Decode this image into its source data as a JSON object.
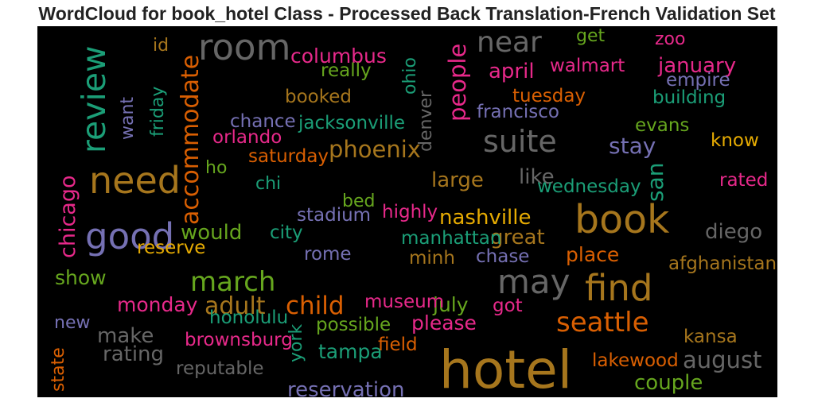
{
  "chart_data": {
    "type": "wordcloud",
    "title": "WordCloud for book_hotel Class - Processed Back Translation-French Validation Set",
    "background": "#000000",
    "words": [
      {
        "text": "hotel",
        "weight": 1.0,
        "color": "#a6761d",
        "vertical": false
      },
      {
        "text": "book",
        "weight": 0.7,
        "color": "#a6761d",
        "vertical": false
      },
      {
        "text": "room",
        "weight": 0.62,
        "color": "#666666",
        "vertical": false
      },
      {
        "text": "need",
        "weight": 0.65,
        "color": "#a6761d",
        "vertical": false
      },
      {
        "text": "good",
        "weight": 0.62,
        "color": "#7570b3",
        "vertical": false
      },
      {
        "text": "find",
        "weight": 0.62,
        "color": "#a6761d",
        "vertical": false
      },
      {
        "text": "may",
        "weight": 0.58,
        "color": "#666666",
        "vertical": false
      },
      {
        "text": "review",
        "weight": 0.55,
        "color": "#1b9e77",
        "vertical": true
      },
      {
        "text": "suite",
        "weight": 0.5,
        "color": "#666666",
        "vertical": false
      },
      {
        "text": "near",
        "weight": 0.46,
        "color": "#666666",
        "vertical": false
      },
      {
        "text": "seattle",
        "weight": 0.42,
        "color": "#d95f02",
        "vertical": false
      },
      {
        "text": "march",
        "weight": 0.42,
        "color": "#66a61e",
        "vertical": false
      },
      {
        "text": "child",
        "weight": 0.38,
        "color": "#d95f02",
        "vertical": false
      },
      {
        "text": "adult",
        "weight": 0.36,
        "color": "#a6761d",
        "vertical": false
      },
      {
        "text": "accommodate",
        "weight": 0.35,
        "color": "#d95f02",
        "vertical": true
      },
      {
        "text": "phoenix",
        "weight": 0.34,
        "color": "#a6761d",
        "vertical": false
      },
      {
        "text": "people",
        "weight": 0.34,
        "color": "#e7298a",
        "vertical": true
      },
      {
        "text": "august",
        "weight": 0.34,
        "color": "#666666",
        "vertical": false
      },
      {
        "text": "stay",
        "weight": 0.33,
        "color": "#7570b3",
        "vertical": false
      },
      {
        "text": "san",
        "weight": 0.32,
        "color": "#1b9e77",
        "vertical": true
      },
      {
        "text": "chicago",
        "weight": 0.3,
        "color": "#e7298a",
        "vertical": true
      },
      {
        "text": "reservation",
        "weight": 0.29,
        "color": "#7570b3",
        "vertical": false
      },
      {
        "text": "couple",
        "weight": 0.29,
        "color": "#66a61e",
        "vertical": false
      },
      {
        "text": "nashville",
        "weight": 0.29,
        "color": "#e6ab02",
        "vertical": false
      },
      {
        "text": "large",
        "weight": 0.29,
        "color": "#a6761d",
        "vertical": false
      },
      {
        "text": "like",
        "weight": 0.28,
        "color": "#666666",
        "vertical": false
      },
      {
        "text": "rating",
        "weight": 0.28,
        "color": "#666666",
        "vertical": false
      },
      {
        "text": "make",
        "weight": 0.28,
        "color": "#666666",
        "vertical": false
      },
      {
        "text": "would",
        "weight": 0.28,
        "color": "#66a61e",
        "vertical": false
      },
      {
        "text": "great",
        "weight": 0.28,
        "color": "#a6761d",
        "vertical": false
      },
      {
        "text": "diego",
        "weight": 0.28,
        "color": "#666666",
        "vertical": false
      },
      {
        "text": "january",
        "weight": 0.28,
        "color": "#e7298a",
        "vertical": false
      },
      {
        "text": "april",
        "weight": 0.28,
        "color": "#e7298a",
        "vertical": false
      },
      {
        "text": "columbus",
        "weight": 0.27,
        "color": "#e7298a",
        "vertical": false
      },
      {
        "text": "place",
        "weight": 0.27,
        "color": "#d95f02",
        "vertical": false
      },
      {
        "text": "tampa",
        "weight": 0.27,
        "color": "#1b9e77",
        "vertical": false
      },
      {
        "text": "please",
        "weight": 0.27,
        "color": "#e7298a",
        "vertical": false
      },
      {
        "text": "july",
        "weight": 0.27,
        "color": "#66a61e",
        "vertical": false
      },
      {
        "text": "monday",
        "weight": 0.27,
        "color": "#e7298a",
        "vertical": false
      },
      {
        "text": "show",
        "weight": 0.27,
        "color": "#66a61e",
        "vertical": false
      },
      {
        "text": "afghanistan",
        "weight": 0.24,
        "color": "#a6761d",
        "vertical": false
      },
      {
        "text": "walmart",
        "weight": 0.24,
        "color": "#e7298a",
        "vertical": false
      },
      {
        "text": "tuesday",
        "weight": 0.24,
        "color": "#d95f02",
        "vertical": false
      },
      {
        "text": "francisco",
        "weight": 0.24,
        "color": "#7570b3",
        "vertical": false
      },
      {
        "text": "building",
        "weight": 0.24,
        "color": "#1b9e77",
        "vertical": false
      },
      {
        "text": "empire",
        "weight": 0.24,
        "color": "#7570b3",
        "vertical": false
      },
      {
        "text": "jacksonville",
        "weight": 0.24,
        "color": "#1b9e77",
        "vertical": false
      },
      {
        "text": "chance",
        "weight": 0.24,
        "color": "#7570b3",
        "vertical": false
      },
      {
        "text": "orlando",
        "weight": 0.24,
        "color": "#e7298a",
        "vertical": false
      },
      {
        "text": "saturday",
        "weight": 0.24,
        "color": "#d95f02",
        "vertical": false
      },
      {
        "text": "booked",
        "weight": 0.24,
        "color": "#a6761d",
        "vertical": false
      },
      {
        "text": "really",
        "weight": 0.24,
        "color": "#66a61e",
        "vertical": false
      },
      {
        "text": "wednesday",
        "weight": 0.24,
        "color": "#1b9e77",
        "vertical": false
      },
      {
        "text": "highly",
        "weight": 0.24,
        "color": "#e7298a",
        "vertical": false
      },
      {
        "text": "stadium",
        "weight": 0.24,
        "color": "#7570b3",
        "vertical": false
      },
      {
        "text": "manhattan",
        "weight": 0.24,
        "color": "#1b9e77",
        "vertical": false
      },
      {
        "text": "city",
        "weight": 0.24,
        "color": "#1b9e77",
        "vertical": false
      },
      {
        "text": "reserve",
        "weight": 0.24,
        "color": "#e6ab02",
        "vertical": false
      },
      {
        "text": "rome",
        "weight": 0.24,
        "color": "#7570b3",
        "vertical": false
      },
      {
        "text": "minh",
        "weight": 0.24,
        "color": "#a6761d",
        "vertical": false
      },
      {
        "text": "chase",
        "weight": 0.24,
        "color": "#7570b3",
        "vertical": false
      },
      {
        "text": "museum",
        "weight": 0.24,
        "color": "#e7298a",
        "vertical": false
      },
      {
        "text": "got",
        "weight": 0.24,
        "color": "#e7298a",
        "vertical": false
      },
      {
        "text": "honolulu",
        "weight": 0.24,
        "color": "#1b9e77",
        "vertical": false
      },
      {
        "text": "possible",
        "weight": 0.24,
        "color": "#66a61e",
        "vertical": false
      },
      {
        "text": "brownsburg",
        "weight": 0.24,
        "color": "#e7298a",
        "vertical": false
      },
      {
        "text": "field",
        "weight": 0.24,
        "color": "#d95f02",
        "vertical": false
      },
      {
        "text": "reputable",
        "weight": 0.24,
        "color": "#666666",
        "vertical": false
      },
      {
        "text": "lakewood",
        "weight": 0.24,
        "color": "#d95f02",
        "vertical": false
      },
      {
        "text": "kansa",
        "weight": 0.24,
        "color": "#a6761d",
        "vertical": false
      },
      {
        "text": "rated",
        "weight": 0.24,
        "color": "#e7298a",
        "vertical": false
      },
      {
        "text": "know",
        "weight": 0.24,
        "color": "#e6ab02",
        "vertical": false
      },
      {
        "text": "evans",
        "weight": 0.24,
        "color": "#66a61e",
        "vertical": false
      },
      {
        "text": "get",
        "weight": 0.22,
        "color": "#66a61e",
        "vertical": false
      },
      {
        "text": "zoo",
        "weight": 0.22,
        "color": "#e7298a",
        "vertical": false
      },
      {
        "text": "id",
        "weight": 0.22,
        "color": "#a6761d",
        "vertical": false
      },
      {
        "text": "ho",
        "weight": 0.22,
        "color": "#66a61e",
        "vertical": false
      },
      {
        "text": "chi",
        "weight": 0.22,
        "color": "#1b9e77",
        "vertical": false
      },
      {
        "text": "bed",
        "weight": 0.22,
        "color": "#66a61e",
        "vertical": false
      },
      {
        "text": "new",
        "weight": 0.22,
        "color": "#7570b3",
        "vertical": false
      },
      {
        "text": "ohio",
        "weight": 0.22,
        "color": "#1b9e77",
        "vertical": true
      },
      {
        "text": "denver",
        "weight": 0.22,
        "color": "#666666",
        "vertical": true
      },
      {
        "text": "want",
        "weight": 0.22,
        "color": "#7570b3",
        "vertical": true
      },
      {
        "text": "friday",
        "weight": 0.22,
        "color": "#1b9e77",
        "vertical": true
      },
      {
        "text": "york",
        "weight": 0.22,
        "color": "#1b9e77",
        "vertical": true
      },
      {
        "text": "state",
        "weight": 0.22,
        "color": "#d95f02",
        "vertical": true
      }
    ]
  }
}
